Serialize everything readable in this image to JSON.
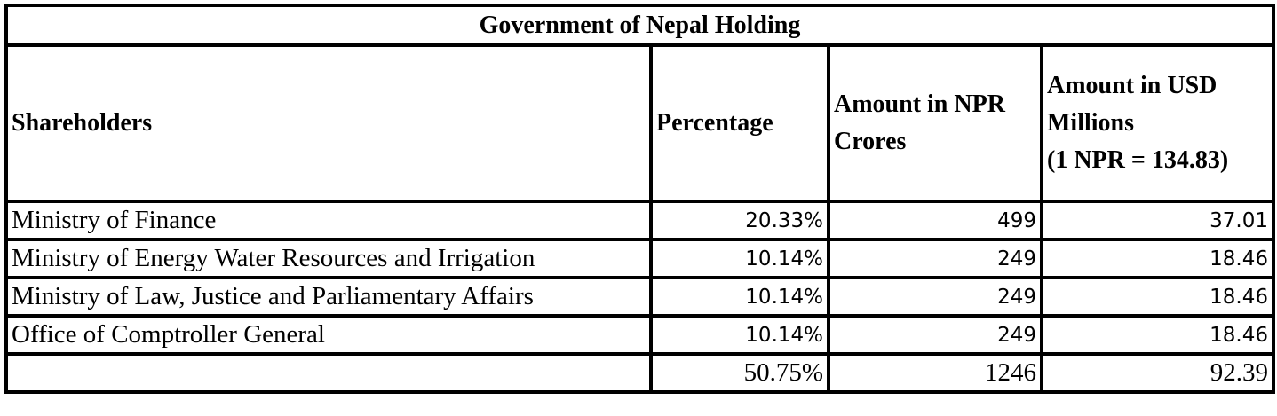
{
  "title": "Government of Nepal Holding",
  "headers": {
    "shareholders": "Shareholders",
    "percentage": "Percentage",
    "npr": "Amount in NPR Crores",
    "usd_line1": "Amount in USD Millions",
    "usd_line2": "(1 NPR = 134.83)"
  },
  "rows": [
    {
      "name": "Ministry of Finance",
      "percentage": "20.33%",
      "npr": "499",
      "usd": "37.01"
    },
    {
      "name": "Ministry of Energy Water Resources and Irrigation",
      "percentage": "10.14%",
      "npr": "249",
      "usd": "18.46"
    },
    {
      "name": "Ministry of Law, Justice and Parliamentary Affairs",
      "percentage": "10.14%",
      "npr": "249",
      "usd": "18.46"
    },
    {
      "name": "Office of Comptroller General",
      "percentage": "10.14%",
      "npr": "249",
      "usd": "18.46"
    }
  ],
  "total": {
    "name": "",
    "percentage": "50.75%",
    "npr": "1246",
    "usd": "92.39"
  }
}
